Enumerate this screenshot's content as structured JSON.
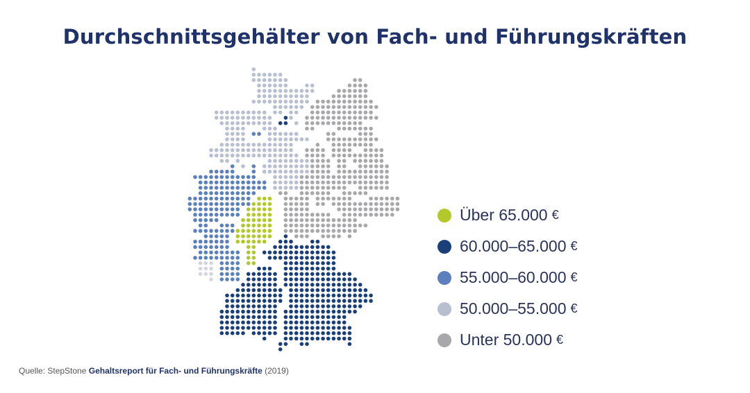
{
  "title": "Durchschnittsgehälter von Fach- und Führungskräften",
  "legend": [
    {
      "label": "Über 65.000",
      "unit": "€",
      "color": "#b3c82a"
    },
    {
      "label": "60.000–65.000",
      "unit": "€",
      "color": "#1b3f78"
    },
    {
      "label": "55.000–60.000",
      "unit": "€",
      "color": "#5b80bb"
    },
    {
      "label": "50.000–55.000",
      "unit": "€",
      "color": "#b8bfcf"
    },
    {
      "label": "Unter 50.000",
      "unit": "€",
      "color": "#a8a8aa"
    }
  ],
  "source": {
    "prefix": "Quelle: StepStone",
    "report": "Gehaltsreport für Fach- und Führungskräfte",
    "year": "(2019)"
  }
}
